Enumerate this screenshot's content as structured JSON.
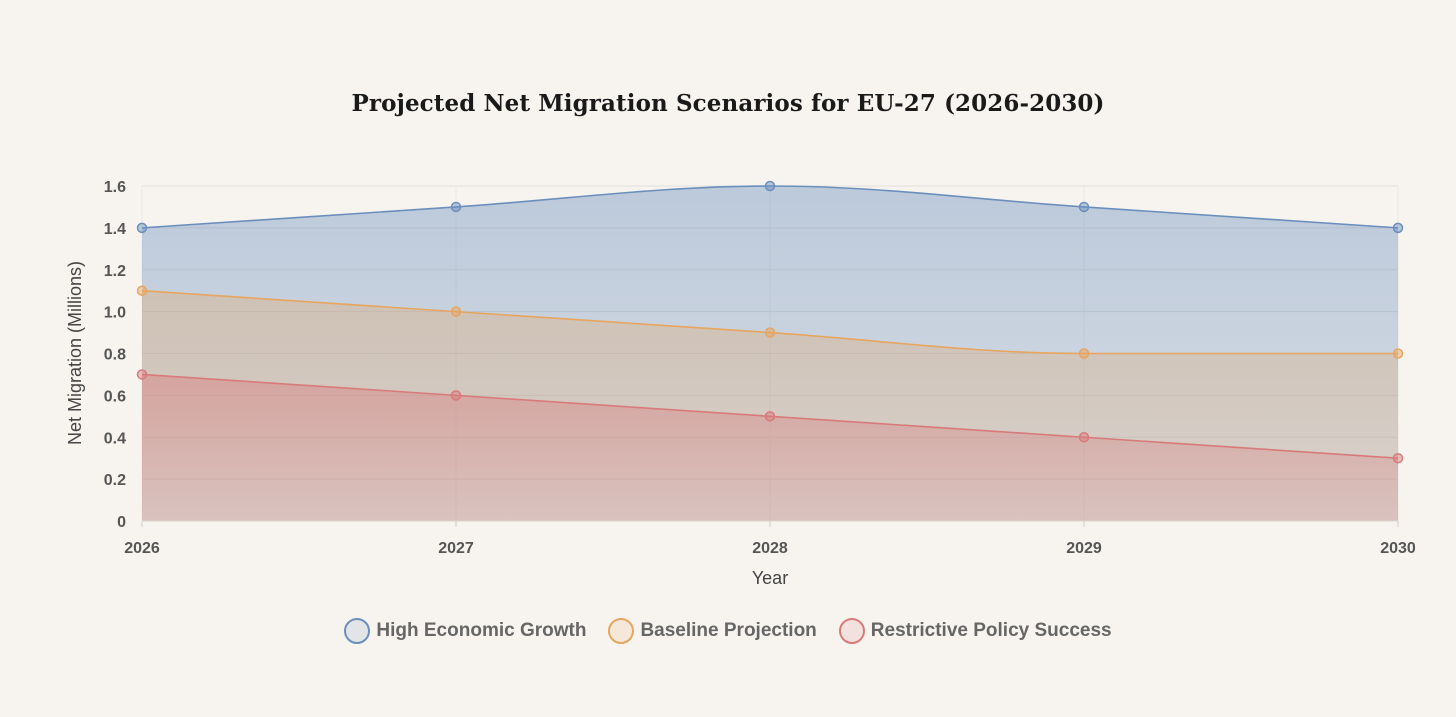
{
  "chart_data": {
    "type": "area",
    "title": "Projected Net Migration Scenarios for EU-27 (2026-2030)",
    "xlabel": "Year",
    "ylabel": "Net Migration (Millions)",
    "categories": [
      "2026",
      "2027",
      "2028",
      "2029",
      "2030"
    ],
    "ylim": [
      0,
      1.6
    ],
    "yticks": [
      "0",
      "0.2",
      "0.4",
      "0.6",
      "0.8",
      "1.0",
      "1.2",
      "1.4",
      "1.6"
    ],
    "grid": true,
    "legend_position": "bottom",
    "series": [
      {
        "name": "High Economic Growth",
        "values": [
          1.4,
          1.5,
          1.6,
          1.5,
          1.4
        ],
        "color": "#6b8fbd"
      },
      {
        "name": "Baseline Projection",
        "values": [
          1.1,
          1.0,
          0.9,
          0.8,
          0.8
        ],
        "color": "#e8a55e"
      },
      {
        "name": "Restrictive Policy Success",
        "values": [
          0.7,
          0.6,
          0.5,
          0.4,
          0.3
        ],
        "color": "#d97a7a"
      }
    ]
  }
}
